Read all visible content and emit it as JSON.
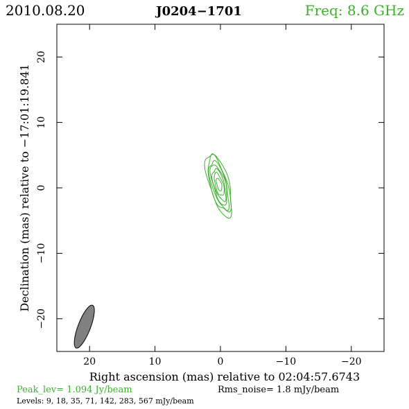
{
  "header": {
    "date": "2010.08.20",
    "source": "J0204−1701",
    "freq": "Freq:  8.6  GHz"
  },
  "axes": {
    "xlabel": "Right ascension (mas) relative to 02:04:57.6743",
    "ylabel": "Declination (mas) relative to −17:01:19.841",
    "xticks": [
      {
        "value": 20,
        "label": "20"
      },
      {
        "value": 10,
        "label": "10"
      },
      {
        "value": 0,
        "label": "0"
      },
      {
        "value": -10,
        "label": "−10"
      },
      {
        "value": -20,
        "label": "−20"
      }
    ],
    "yticks": [
      {
        "value": 20,
        "label": "20"
      },
      {
        "value": 10,
        "label": "10"
      },
      {
        "value": 0,
        "label": "0"
      },
      {
        "value": -10,
        "label": "−10"
      },
      {
        "value": -20,
        "label": "−20"
      }
    ]
  },
  "footer": {
    "peak": "Peak_lev=  1.094 Jy/beam",
    "rms": "Rms_noise=   1.8 mJy/beam",
    "levels": "Levels:   9,  18,  35,  71, 142, 283, 567 mJy/beam"
  },
  "colors": {
    "contour": "#3cb02c",
    "beam": "#808080",
    "axis": "#000000"
  },
  "chart_data": {
    "type": "contour",
    "xlim": [
      25,
      -25
    ],
    "ylim": [
      -25,
      25
    ],
    "x_reversed": true,
    "grid": false,
    "contour_levels_mJy": [
      9,
      18,
      35,
      71,
      142,
      283,
      567
    ],
    "source_center": {
      "x": 0.2,
      "y": 0.5
    },
    "contours": [
      {
        "level": 9,
        "half_major": 5.0,
        "half_minor": 1.5,
        "pa_deg": 16
      },
      {
        "level": 18,
        "half_major": 4.4,
        "half_minor": 1.3,
        "pa_deg": 16
      },
      {
        "level": 35,
        "half_major": 3.8,
        "half_minor": 1.1,
        "pa_deg": 16
      },
      {
        "level": 71,
        "half_major": 3.2,
        "half_minor": 0.95,
        "pa_deg": 16
      },
      {
        "level": 142,
        "half_major": 2.5,
        "half_minor": 0.8,
        "pa_deg": 16
      },
      {
        "level": 283,
        "half_major": 1.8,
        "half_minor": 0.6,
        "pa_deg": 16
      },
      {
        "level": 567,
        "half_major": 1.0,
        "half_minor": 0.35,
        "pa_deg": 16
      }
    ],
    "beam": {
      "x": 20.8,
      "y": -21.2,
      "major": 7.0,
      "minor": 1.9,
      "pa_deg": 21
    }
  }
}
